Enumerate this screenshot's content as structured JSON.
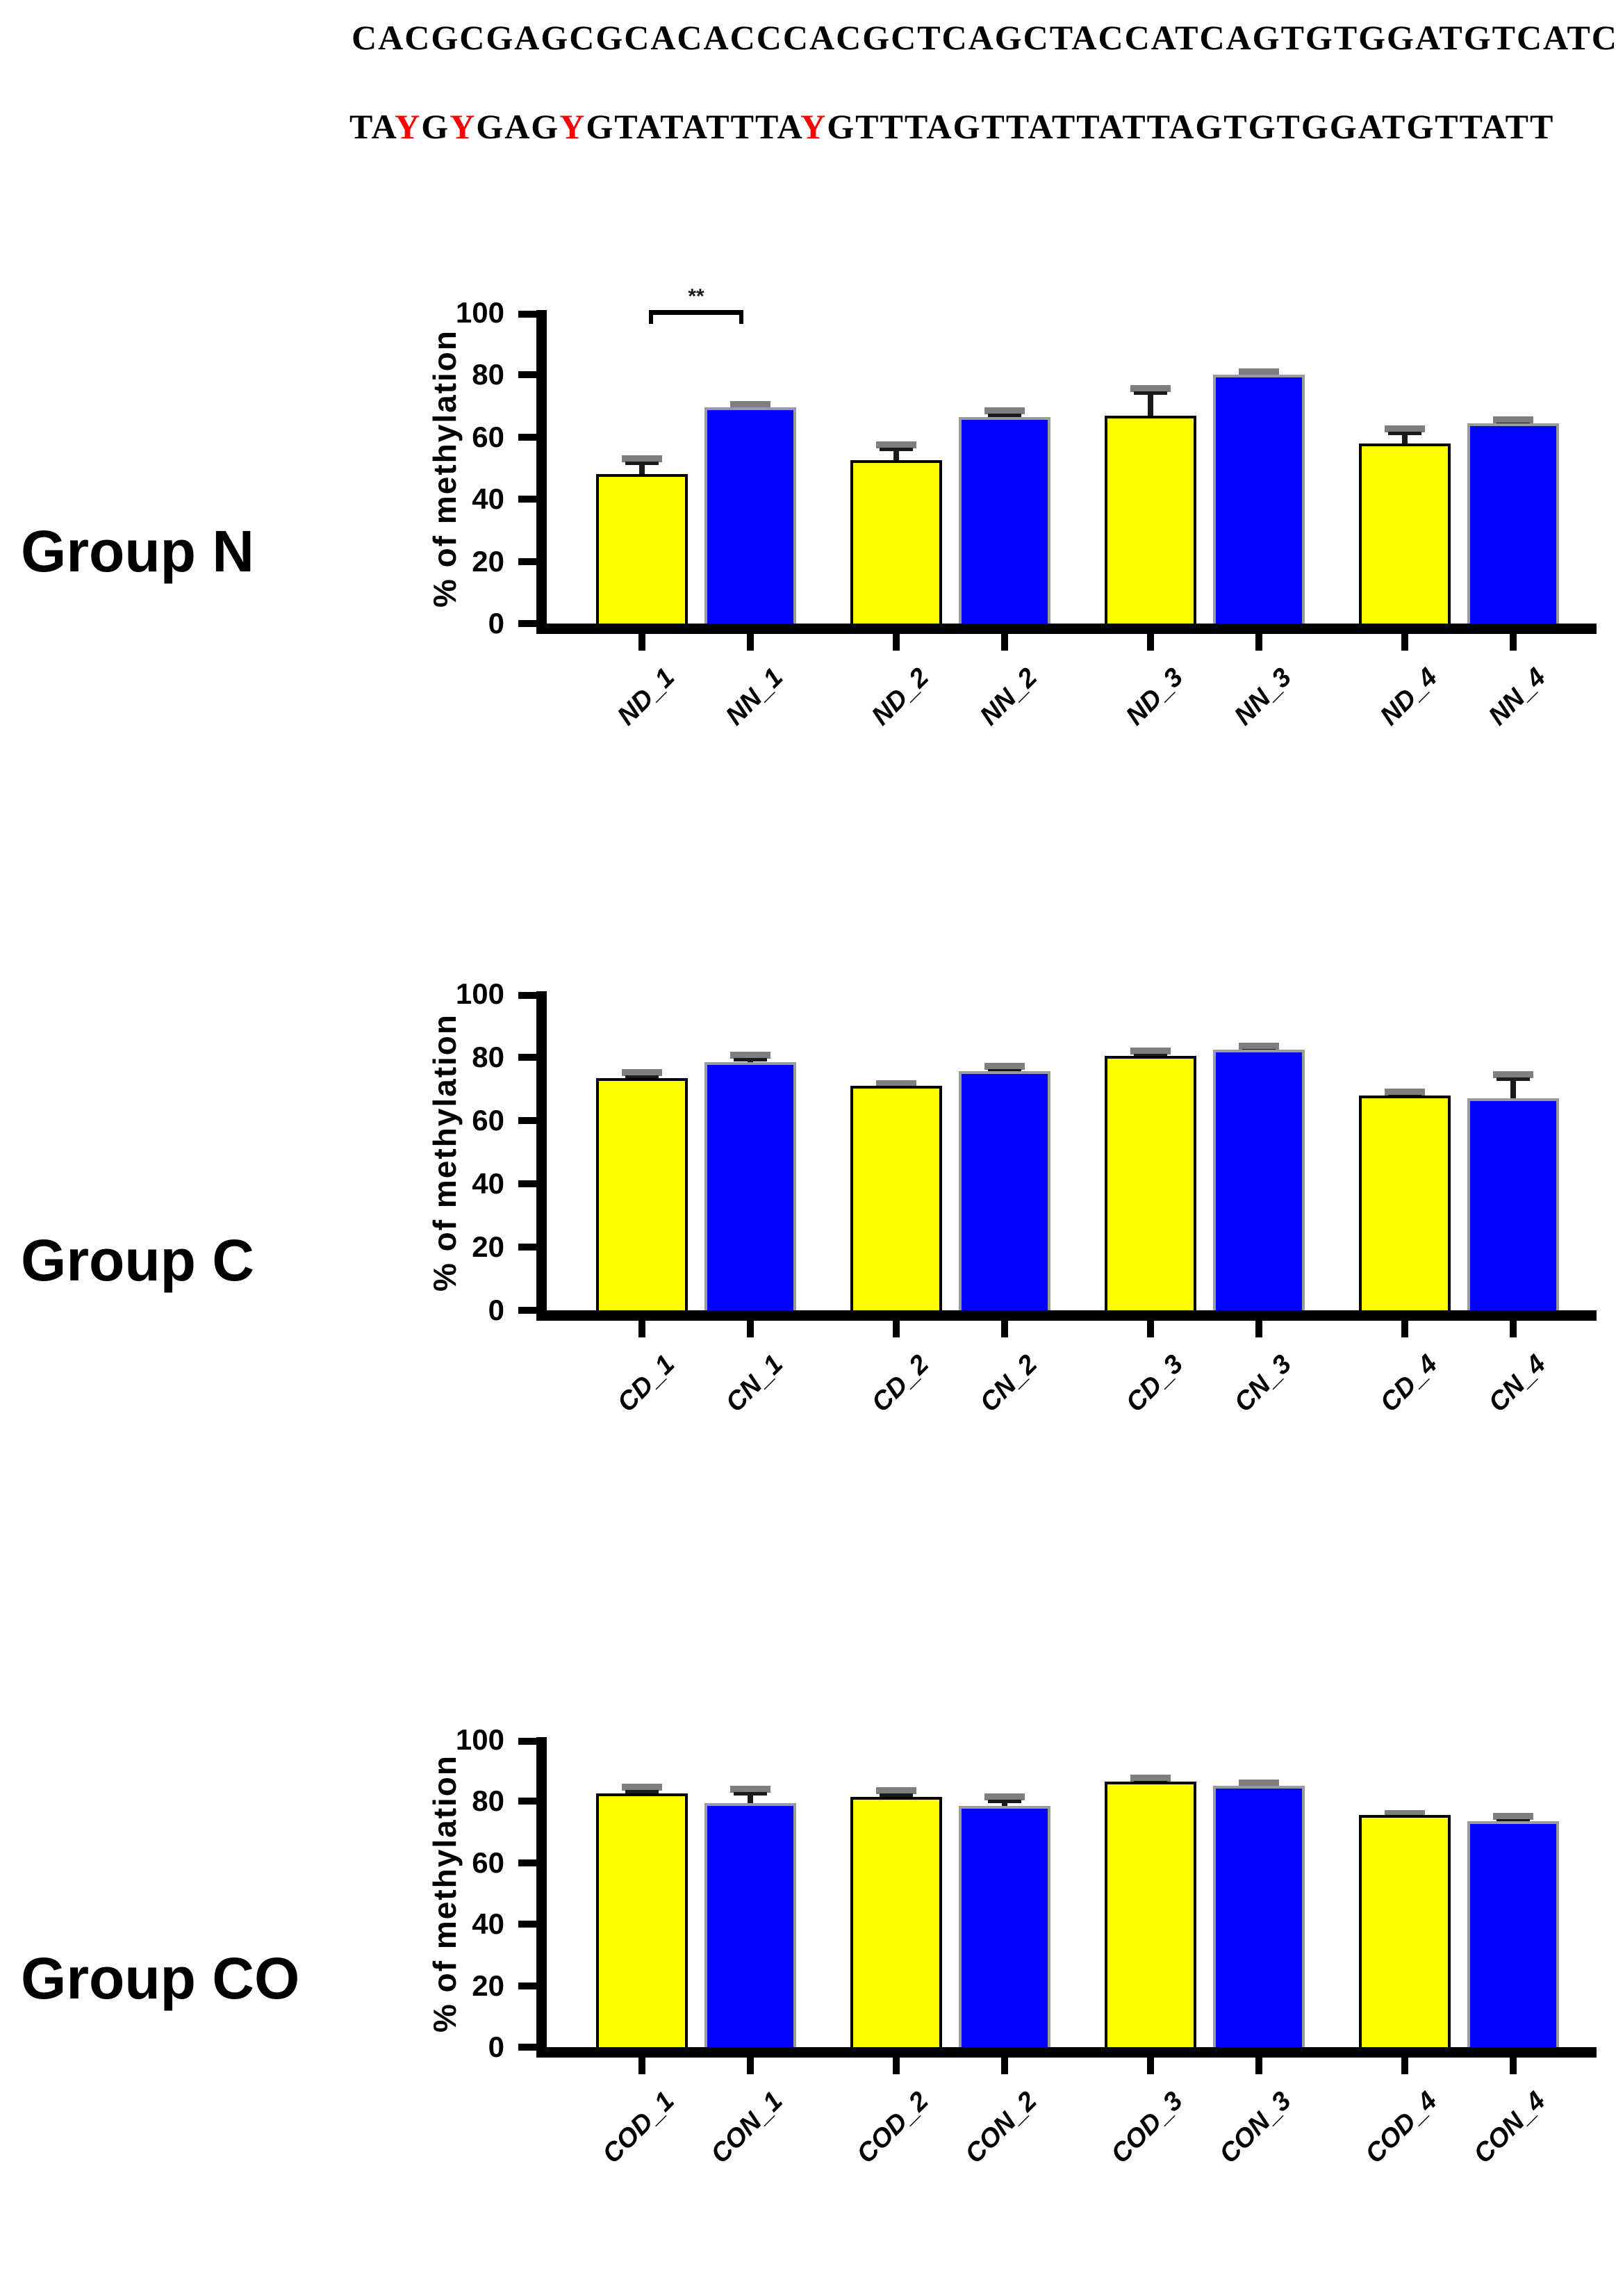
{
  "sequences": {
    "line1": "CACGCGAGCGCACACCCACGCTCAGCTACCATCAGTGTGGATGTCATC",
    "line2_segments": [
      {
        "text": "TA",
        "highlight": false
      },
      {
        "text": "Y",
        "highlight": true
      },
      {
        "text": "G",
        "highlight": false
      },
      {
        "text": "Y",
        "highlight": true
      },
      {
        "text": "GAG",
        "highlight": false
      },
      {
        "text": "Y",
        "highlight": true
      },
      {
        "text": "GTATATTTA",
        "highlight": false
      },
      {
        "text": "Y",
        "highlight": true
      },
      {
        "text": "GTTTAGTTATTATTAGTGTGGATGTTATT",
        "highlight": false
      }
    ]
  },
  "colors": {
    "bar_yellow": "#ffff00",
    "bar_blue": "#0000ff",
    "yellow_border": "#000000",
    "blue_border": "#9b9b9b",
    "error_stem": "#1a1a1a",
    "error_cap": "#7e7e7e",
    "axis": "#000000",
    "sequence_highlight": "#ff0000"
  },
  "chart_data": [
    {
      "type": "bar",
      "group_label": "Group N",
      "ylabel": "% of methylation",
      "ylim": [
        0,
        100
      ],
      "yticks": [
        0,
        20,
        40,
        60,
        80,
        100
      ],
      "grid": false,
      "legend": null,
      "categories": [
        "ND_1",
        "NN_1",
        "ND_2",
        "NN_2",
        "ND_3",
        "NN_3",
        "ND_4",
        "NN_4"
      ],
      "values": [
        48,
        69.5,
        52.5,
        66.5,
        67,
        80,
        58,
        64.5
      ],
      "errors": [
        5.5,
        1.5,
        5.5,
        2.5,
        9,
        1.5,
        5,
        1.5
      ],
      "significance": {
        "label": "**",
        "from_index": 0,
        "to_index": 1
      }
    },
    {
      "type": "bar",
      "group_label": "Group C",
      "ylabel": "% of methylation",
      "ylim": [
        0,
        100
      ],
      "yticks": [
        0,
        20,
        40,
        60,
        80,
        100
      ],
      "grid": false,
      "legend": null,
      "categories": [
        "CD_1",
        "CN_1",
        "CD_2",
        "CN_2",
        "CD_3",
        "CN_3",
        "CD_4",
        "CN_4"
      ],
      "values": [
        73.5,
        78.5,
        71,
        75.5,
        80.5,
        82.5,
        68,
        67
      ],
      "errors": [
        2,
        2.5,
        1,
        2,
        2,
        1.5,
        1.5,
        8
      ],
      "significance": null
    },
    {
      "type": "bar",
      "group_label": "Group CO",
      "ylabel": "% of methylation",
      "ylim": [
        0,
        100
      ],
      "yticks": [
        0,
        20,
        40,
        60,
        80,
        100
      ],
      "grid": false,
      "legend": null,
      "categories": [
        "COD_1",
        "CON_1",
        "COD_2",
        "CON_2",
        "COD_3",
        "CON_3",
        "COD_4",
        "CON_4"
      ],
      "values": [
        82.5,
        79.5,
        81.5,
        78.5,
        86.5,
        85,
        75.5,
        73.5
      ],
      "errors": [
        2.5,
        5,
        2.5,
        3.5,
        1.5,
        1.5,
        1,
        2
      ]
    }
  ]
}
